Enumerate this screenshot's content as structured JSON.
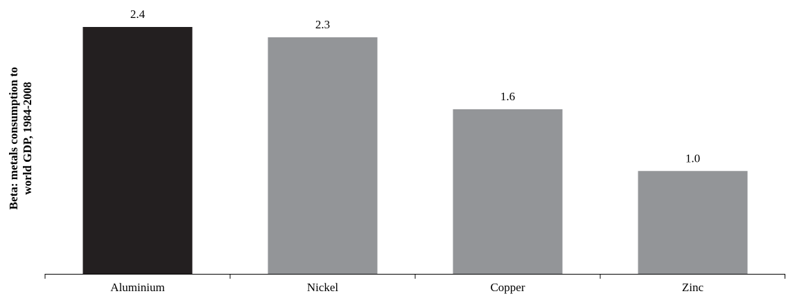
{
  "chart_data": {
    "type": "bar",
    "title": "",
    "xlabel": "",
    "ylabel": "Beta: metals consumption to\nworld GDP, 1984-2008",
    "categories": [
      "Aluminium",
      "Nickel",
      "Copper",
      "Zinc"
    ],
    "values": [
      2.4,
      2.3,
      1.6,
      1.0
    ],
    "data_labels": [
      "2.4",
      "2.3",
      "1.6",
      "1.0"
    ],
    "bar_colors": [
      "#231f20",
      "#939598",
      "#939598",
      "#939598"
    ],
    "ylim": [
      0,
      2.4
    ],
    "grid": false,
    "legend": "none"
  }
}
